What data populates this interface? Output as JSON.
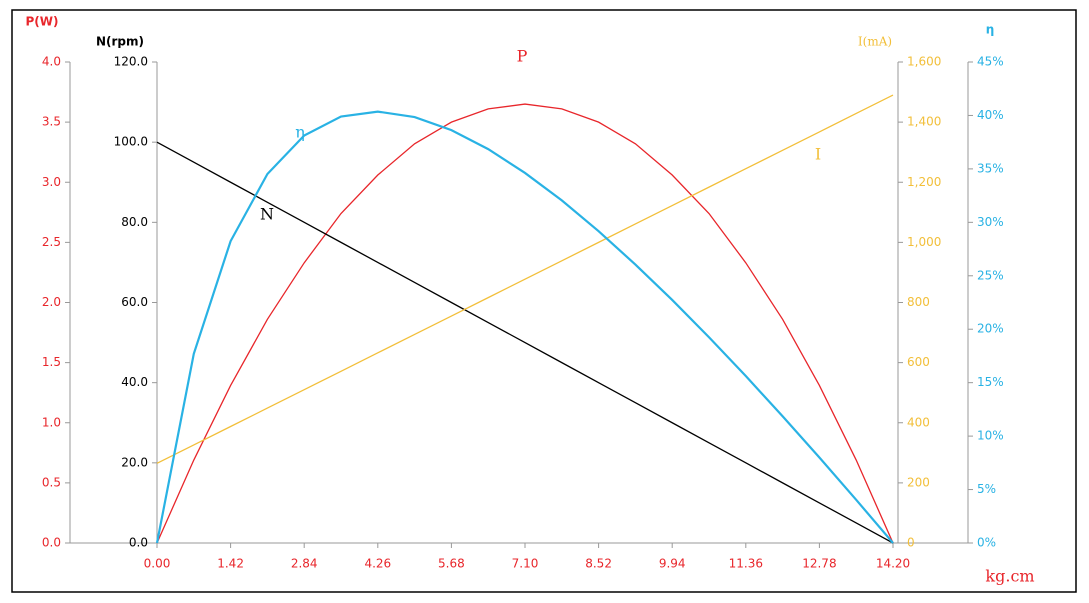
{
  "chart_data": {
    "type": "line",
    "x_label": "kg.cm",
    "x": [
      0,
      0.71,
      1.42,
      2.13,
      2.84,
      3.55,
      4.26,
      4.97,
      5.68,
      6.39,
      7.1,
      7.81,
      8.52,
      9.23,
      9.94,
      10.65,
      11.36,
      12.07,
      12.78,
      13.49,
      14.2
    ],
    "xlim": [
      0,
      14.2
    ],
    "xticks": [
      {
        "value": 0,
        "label": "0.00"
      },
      1.42,
      2.84,
      4.26,
      5.68,
      {
        "value": 7.1,
        "label": "7.10"
      },
      8.52,
      9.94,
      11.36,
      12.78,
      {
        "value": 14.2,
        "label": "14.20"
      }
    ],
    "y_axes": [
      {
        "title": "P(W)",
        "color": "#e8262b",
        "lim": [
          0,
          4
        ],
        "ticks": [
          {
            "value": 0,
            "label": "0.0"
          },
          0.5,
          {
            "value": 1,
            "label": "1.0"
          },
          1.5,
          {
            "value": 2,
            "label": "2.0"
          },
          2.5,
          {
            "value": 3,
            "label": "3.0"
          },
          3.5,
          {
            "value": 4,
            "label": "4.0"
          }
        ]
      },
      {
        "title": "N(rpm)",
        "color": "#000000",
        "lim": [
          0,
          120
        ],
        "ticks": [
          {
            "value": 0,
            "label": "0.0"
          },
          {
            "value": 20,
            "label": "20.0"
          },
          {
            "value": 40,
            "label": "40.0"
          },
          {
            "value": 60,
            "label": "60.0"
          },
          {
            "value": 80,
            "label": "80.0"
          },
          {
            "value": 100,
            "label": "100.0"
          },
          {
            "value": 120,
            "label": "120.0"
          }
        ]
      },
      {
        "title": "I(mA)",
        "color": "#f2bf3a",
        "lim": [
          0,
          1600
        ],
        "ticks": [
          0,
          200,
          400,
          600,
          800,
          {
            "value": 1000,
            "label": "1,000"
          },
          {
            "value": 1200,
            "label": "1,200"
          },
          {
            "value": 1400,
            "label": "1,400"
          },
          {
            "value": 1600,
            "label": "1,600"
          }
        ]
      },
      {
        "title": "η",
        "color": "#29b2e4",
        "lim": [
          0,
          45
        ],
        "ticks": [
          {
            "value": 0,
            "label": "0%"
          },
          {
            "value": 5,
            "label": "5%"
          },
          {
            "value": 10,
            "label": "10%"
          },
          {
            "value": 15,
            "label": "15%"
          },
          {
            "value": 20,
            "label": "20%"
          },
          {
            "value": 25,
            "label": "25%"
          },
          {
            "value": 30,
            "label": "30%"
          },
          {
            "value": 35,
            "label": "35%"
          },
          {
            "value": 40,
            "label": "40%"
          },
          {
            "value": 45,
            "label": "45%"
          }
        ]
      }
    ],
    "series": [
      {
        "name": "P",
        "color": "#e8262b",
        "axis": 0,
        "values": [
          0,
          0.69,
          1.31,
          1.86,
          2.33,
          2.74,
          3.06,
          3.32,
          3.5,
          3.61,
          3.65,
          3.61,
          3.5,
          3.32,
          3.06,
          2.74,
          2.33,
          1.86,
          1.31,
          0.69,
          0
        ]
      },
      {
        "name": "N",
        "color": "#000000",
        "axis": 1,
        "values": [
          100,
          95,
          90,
          85,
          80,
          75,
          70,
          65,
          60,
          55,
          50,
          45,
          40,
          35,
          30,
          25,
          20,
          15,
          10,
          5,
          0
        ]
      },
      {
        "name": "I",
        "color": "#f2bf3a",
        "axis": 2,
        "values": [
          265,
          326.25,
          387.5,
          448.75,
          510,
          571.25,
          632.5,
          693.75,
          755,
          816.25,
          877.5,
          938.75,
          1000,
          1061.25,
          1122.5,
          1183.75,
          1245,
          1306.25,
          1367.5,
          1428.75,
          1490
        ]
      },
      {
        "name": "η",
        "color": "#29b2e4",
        "axis": 3,
        "values": [
          0,
          17.7,
          28.24,
          34.52,
          38.12,
          39.9,
          40.36,
          39.85,
          38.63,
          36.85,
          34.62,
          32.05,
          29.17,
          26.05,
          22.74,
          19.25,
          15.62,
          11.86,
          8,
          4.04,
          0
        ]
      }
    ]
  }
}
